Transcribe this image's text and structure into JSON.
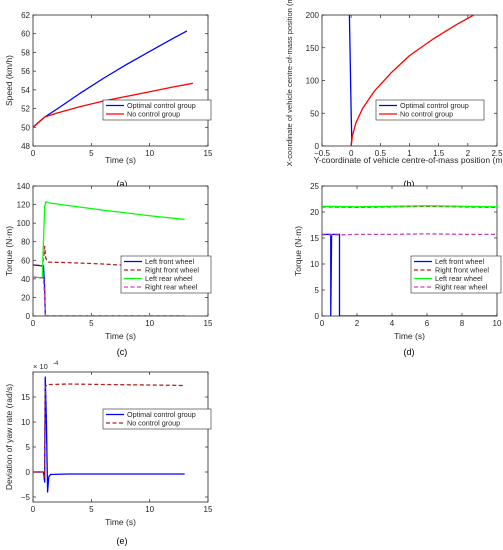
{
  "chart_data": [
    {
      "panel_label": "(a)",
      "type": "line",
      "xlabel": "Time (s)",
      "ylabel": "Speed (km/h)",
      "xlim": [
        0,
        15
      ],
      "ylim": [
        48,
        62
      ],
      "xticks": [
        0,
        5,
        10,
        15
      ],
      "yticks": [
        48,
        50,
        52,
        54,
        56,
        58,
        60,
        62
      ],
      "legend_position": "bottom-right",
      "series": [
        {
          "name": "Optimal control group",
          "color": "#0000ff",
          "dash": "solid",
          "x": [
            0,
            1,
            2,
            4,
            6,
            8,
            10,
            12,
            13.2
          ],
          "y": [
            50,
            51.1,
            51.9,
            53.6,
            55.2,
            56.7,
            58.1,
            59.5,
            60.3
          ]
        },
        {
          "name": "No control group",
          "color": "#ff0000",
          "dash": "solid",
          "x": [
            0,
            1,
            2,
            4,
            6,
            8,
            10,
            12,
            13.7
          ],
          "y": [
            50,
            51.1,
            51.5,
            52.2,
            52.8,
            53.3,
            53.8,
            54.3,
            54.7
          ]
        }
      ]
    },
    {
      "panel_label": "(b)",
      "type": "line",
      "xlabel": "Y-coordinate of vehicle centre-of-mass position (m)",
      "ylabel": "X-coordinate of vehicle centre-of-mass position (m)",
      "xlim": [
        -0.5,
        2.5
      ],
      "ylim": [
        0,
        200
      ],
      "xticks": [
        -0.5,
        0,
        0.5,
        1,
        1.5,
        2,
        2.5
      ],
      "yticks": [
        0,
        50,
        100,
        150,
        200
      ],
      "legend_position": "bottom-right",
      "series": [
        {
          "name": "Optimal control group",
          "color": "#0000ff",
          "dash": "solid",
          "x": [
            0,
            0.01,
            0.0,
            -0.01,
            -0.02,
            -0.03
          ],
          "y": [
            0,
            10,
            50,
            100,
            150,
            200
          ]
        },
        {
          "name": "No control group",
          "color": "#ff0000",
          "dash": "solid",
          "x": [
            0,
            0.02,
            0.08,
            0.2,
            0.4,
            0.7,
            1.0,
            1.4,
            1.8,
            2.1
          ],
          "y": [
            0,
            15,
            35,
            58,
            84,
            113,
            138,
            163,
            185,
            200
          ]
        }
      ]
    },
    {
      "panel_label": "(c)",
      "type": "line",
      "xlabel": "Time (s)",
      "ylabel": "Torque (N·m)",
      "xlim": [
        0,
        15
      ],
      "ylim": [
        0,
        140
      ],
      "xticks": [
        0,
        5,
        10,
        15
      ],
      "yticks": [
        0,
        20,
        40,
        60,
        80,
        100,
        120,
        140
      ],
      "legend_position": "bottom-right",
      "series": [
        {
          "name": "Left front wheel",
          "color": "#0000ff",
          "dash": "solid",
          "x": [
            0,
            0.9,
            1.0,
            1.05,
            1.1,
            13
          ],
          "y": [
            55,
            54,
            30,
            2,
            0,
            0
          ]
        },
        {
          "name": "Right front wheel",
          "color": "#b22222",
          "dash": "dash",
          "x": [
            0,
            0.8,
            0.9,
            1.0,
            1.1,
            1.3,
            3,
            6,
            10,
            13
          ],
          "y": [
            55,
            54,
            62,
            75,
            62,
            58,
            57.5,
            56,
            53,
            51
          ]
        },
        {
          "name": "Left rear wheel",
          "color": "#00ff00",
          "dash": "solid",
          "x": [
            0,
            0.8,
            0.9,
            1.0,
            1.1,
            1.3,
            3,
            6,
            10,
            13
          ],
          "y": [
            42,
            41,
            82,
            118,
            123,
            122,
            119,
            114,
            108,
            104
          ]
        },
        {
          "name": "Right rear wheel",
          "color": "#cc44aa",
          "dash": "dash",
          "x": [
            0,
            0.9,
            1.0,
            1.05,
            1.1,
            13
          ],
          "y": [
            42,
            41,
            20,
            1,
            0,
            0
          ]
        }
      ]
    },
    {
      "panel_label": "(d)",
      "type": "line",
      "xlabel": "Time (s)",
      "ylabel": "Torque (N·m)",
      "xlim": [
        0,
        10
      ],
      "ylim": [
        0,
        25
      ],
      "xticks": [
        0,
        2,
        4,
        6,
        8,
        10
      ],
      "yticks": [
        0,
        5,
        10,
        15,
        20,
        25
      ],
      "legend_position": "bottom-right",
      "series": [
        {
          "name": "Left front wheel",
          "color": "#0000ff",
          "dash": "solid",
          "x": [
            0,
            0.5,
            0.5,
            0.55,
            0.95,
            1.0,
            1.0,
            10
          ],
          "y": [
            15.7,
            15.7,
            0,
            15.7,
            15.7,
            15.7,
            0,
            0
          ]
        },
        {
          "name": "Right front wheel",
          "color": "#b22222",
          "dash": "dash",
          "x": [
            0,
            2,
            4,
            6,
            8,
            10
          ],
          "y": [
            21,
            20.9,
            21,
            21.1,
            21,
            20.9
          ]
        },
        {
          "name": "Left rear wheel",
          "color": "#00ff00",
          "dash": "solid",
          "x": [
            0,
            2,
            4,
            6,
            8,
            10
          ],
          "y": [
            21.1,
            21,
            21.1,
            21.2,
            21.1,
            21
          ]
        },
        {
          "name": "Right rear wheel",
          "color": "#cc44aa",
          "dash": "dash",
          "x": [
            0,
            1,
            2,
            4,
            6,
            8,
            10
          ],
          "y": [
            15.6,
            15.6,
            15.7,
            15.7,
            15.8,
            15.7,
            15.7
          ]
        }
      ]
    },
    {
      "panel_label": "(e)",
      "type": "line",
      "xlabel": "Time (s)",
      "ylabel": "Deviation of yaw rate (rad/s)",
      "xlim": [
        0,
        15
      ],
      "ylim": [
        -6,
        20
      ],
      "y_multiplier": "× 10",
      "y_multiplier_exponent": "-4",
      "xticks": [
        0,
        5,
        10,
        15
      ],
      "yticks": [
        -5,
        0,
        5,
        10,
        15
      ],
      "legend_position": "middle-right",
      "series": [
        {
          "name": "Optimal control group",
          "color": "#0000ff",
          "dash": "solid",
          "x": [
            0,
            0.9,
            1.0,
            1.05,
            1.15,
            1.25,
            1.35,
            1.5,
            3,
            6,
            10,
            13
          ],
          "y": [
            0,
            0,
            -2,
            19,
            10,
            -4,
            -1,
            -0.5,
            -0.4,
            -0.4,
            -0.4,
            -0.4
          ]
        },
        {
          "name": "No control group",
          "color": "#b22222",
          "dash": "dash",
          "x": [
            0,
            0.9,
            1.0,
            1.05,
            1.2,
            1.5,
            3,
            6,
            10,
            13
          ],
          "y": [
            0,
            0,
            -1,
            17,
            17.5,
            17.5,
            17.6,
            17.5,
            17.4,
            17.3
          ]
        }
      ]
    }
  ]
}
